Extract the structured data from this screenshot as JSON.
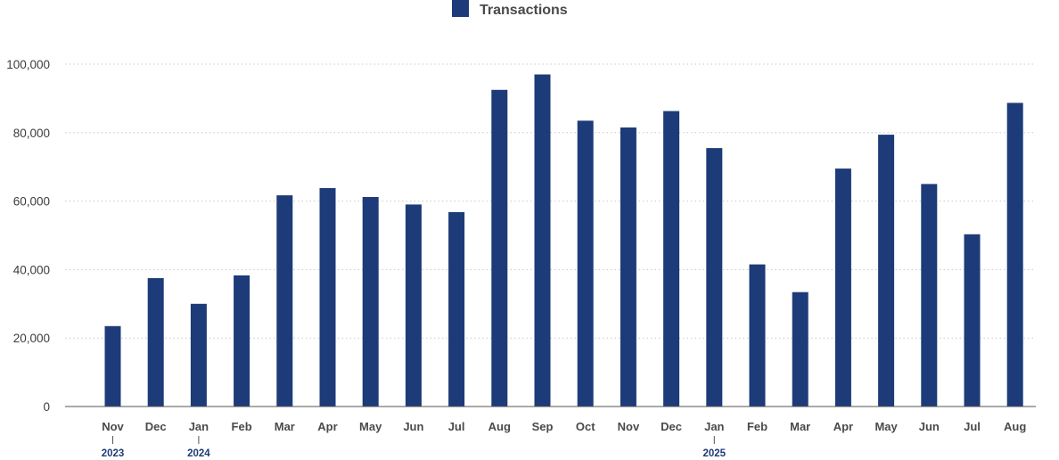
{
  "chart_data": {
    "type": "bar",
    "legend": {
      "position": "top-center",
      "items": [
        {
          "name": "Transactions",
          "color": "#1d3b78"
        }
      ]
    },
    "grid": true,
    "ylim": [
      0,
      100000
    ],
    "y_ticks": [
      "0",
      "20,000",
      "40,000",
      "60,000",
      "80,000",
      "100,000"
    ],
    "y_tick_values": [
      0,
      20000,
      40000,
      60000,
      80000,
      100000
    ],
    "categories": [
      "Nov",
      "Dec",
      "Jan",
      "Feb",
      "Mar",
      "Apr",
      "May",
      "Jun",
      "Jul",
      "Aug",
      "Sep",
      "Oct",
      "Nov",
      "Dec",
      "Jan",
      "Feb",
      "Mar",
      "Apr",
      "May",
      "Jun",
      "Jul",
      "Aug"
    ],
    "year_markers": [
      {
        "category_index": 0,
        "label": "2023"
      },
      {
        "category_index": 2,
        "label": "2024"
      },
      {
        "category_index": 14,
        "label": "2025"
      }
    ],
    "series": [
      {
        "name": "Transactions",
        "color": "#1d3b78",
        "values": [
          23500,
          37500,
          30000,
          38300,
          61700,
          63800,
          61200,
          59000,
          56800,
          92500,
          97000,
          83500,
          81500,
          86300,
          75500,
          41500,
          33400,
          69500,
          79400,
          65000,
          50300,
          88700
        ]
      }
    ]
  }
}
